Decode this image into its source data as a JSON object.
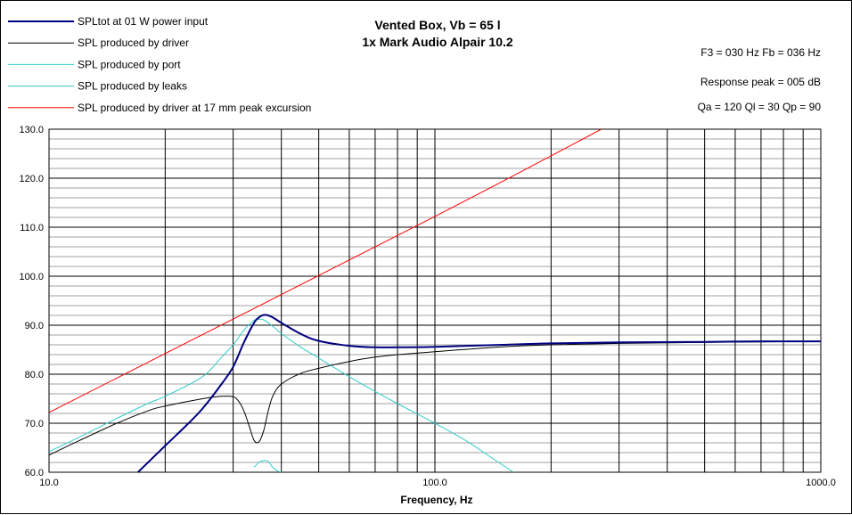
{
  "chart_data": {
    "type": "line",
    "title": [
      "Vented Box, Vb = 65 l",
      "1x Mark Audio Alpair 10.2"
    ],
    "xlabel": "Frequency, Hz",
    "ylabel": "",
    "xscale": "log",
    "xlim": [
      10,
      1000
    ],
    "ylim": [
      60,
      130
    ],
    "x_tick_labels": [
      "10.0",
      "100.0",
      "1000.0"
    ],
    "y_tick_labels": [
      "130.0",
      "120.0",
      "110.0",
      "100.0",
      "90.0",
      "80.0",
      "70.0",
      "60.0"
    ],
    "grid": true,
    "legend_position": "top-left",
    "info": [
      "F3 = 030 Hz  Fb = 036 Hz",
      "Response  peak = 005 dB",
      "Qa = 120   Ql = 30   Qp = 90"
    ],
    "series": [
      {
        "name": "SPLtot at 01 W power input",
        "color": "#000080",
        "width": 2,
        "points": [
          [
            17,
            60
          ],
          [
            20,
            65.4
          ],
          [
            23,
            70
          ],
          [
            25,
            73
          ],
          [
            28,
            78
          ],
          [
            30,
            81.5
          ],
          [
            32,
            86.5
          ],
          [
            34,
            90.5
          ],
          [
            35,
            91.6
          ],
          [
            36,
            92.1
          ],
          [
            37,
            92
          ],
          [
            38,
            91.6
          ],
          [
            40,
            90.5
          ],
          [
            45,
            88.2
          ],
          [
            50,
            86.8
          ],
          [
            60,
            85.8
          ],
          [
            70,
            85.5
          ],
          [
            80,
            85.5
          ],
          [
            100,
            85.6
          ],
          [
            150,
            86
          ],
          [
            200,
            86.3
          ],
          [
            300,
            86.5
          ],
          [
            500,
            86.6
          ],
          [
            700,
            86.7
          ],
          [
            1000,
            86.7
          ]
        ]
      },
      {
        "name": "SPL produced by driver",
        "color": "#000000",
        "width": 1,
        "points": [
          [
            10,
            63.5
          ],
          [
            12,
            66.5
          ],
          [
            15,
            70
          ],
          [
            18,
            72.5
          ],
          [
            20,
            73.5
          ],
          [
            25,
            75
          ],
          [
            28,
            75.5
          ],
          [
            30,
            75.4
          ],
          [
            31,
            74.5
          ],
          [
            32,
            72.5
          ],
          [
            33,
            69.5
          ],
          [
            34,
            66.5
          ],
          [
            35,
            66.2
          ],
          [
            36,
            68.5
          ],
          [
            37,
            72.5
          ],
          [
            38,
            75.5
          ],
          [
            40,
            78
          ],
          [
            45,
            80.2
          ],
          [
            50,
            81.2
          ],
          [
            60,
            82.6
          ],
          [
            70,
            83.5
          ],
          [
            80,
            84
          ],
          [
            100,
            84.6
          ],
          [
            150,
            85.6
          ],
          [
            200,
            86
          ],
          [
            300,
            86.3
          ],
          [
            500,
            86.5
          ],
          [
            1000,
            86.7
          ]
        ]
      },
      {
        "name": "SPL produced by port",
        "color": "#33CCCC",
        "width": 1,
        "points": [
          [
            10,
            64.2
          ],
          [
            12,
            67.2
          ],
          [
            15,
            71
          ],
          [
            18,
            74
          ],
          [
            20,
            75.5
          ],
          [
            25,
            79.5
          ],
          [
            28,
            83.5
          ],
          [
            30,
            86
          ],
          [
            32,
            89
          ],
          [
            34,
            91
          ],
          [
            35,
            91.2
          ],
          [
            36,
            91.1
          ],
          [
            38,
            89.8
          ],
          [
            40,
            88.3
          ],
          [
            45,
            85.5
          ],
          [
            50,
            83.3
          ],
          [
            60,
            79.5
          ],
          [
            70,
            76.5
          ],
          [
            80,
            74
          ],
          [
            100,
            70
          ],
          [
            120,
            66.5
          ],
          [
            140,
            63
          ],
          [
            160,
            60
          ]
        ]
      },
      {
        "name": "SPL produced by leaks",
        "color": "#33CCCC",
        "width": 1,
        "points": [
          [
            34,
            61
          ],
          [
            35,
            62
          ],
          [
            36,
            62.4
          ],
          [
            37,
            62.2
          ],
          [
            38,
            61
          ],
          [
            39,
            60.3
          ],
          [
            40,
            60
          ]
        ]
      },
      {
        "name": "SPL produced by driver at 17 mm peak excursion",
        "color": "#FF0000",
        "width": 1,
        "points": [
          [
            10,
            72.2
          ],
          [
            100,
            112.2
          ],
          [
            270,
            130
          ]
        ]
      }
    ]
  }
}
